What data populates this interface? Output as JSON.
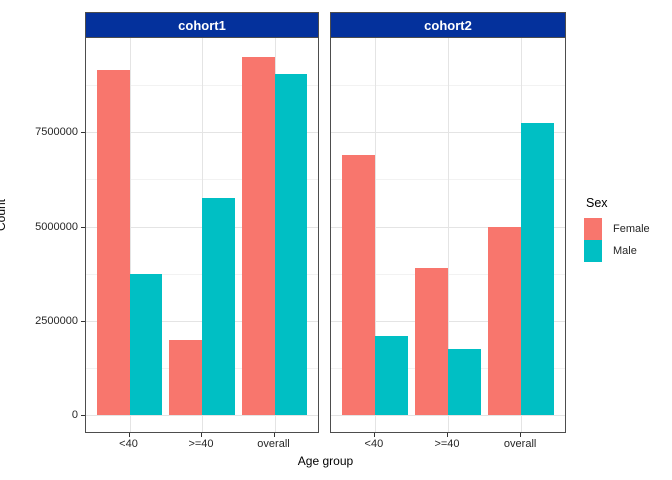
{
  "chart_data": {
    "type": "bar",
    "title": "",
    "categories": [
      "<40",
      ">=40",
      "overall"
    ],
    "facets": [
      {
        "label": "cohort1",
        "series": [
          {
            "name": "Female",
            "values": [
              9150000,
              2000000,
              9500000
            ]
          },
          {
            "name": "Male",
            "values": [
              3750000,
              5750000,
              9050000
            ]
          }
        ]
      },
      {
        "label": "cohort2",
        "series": [
          {
            "name": "Female",
            "values": [
              6900000,
              3900000,
              5000000
            ]
          },
          {
            "name": "Male",
            "values": [
              2100000,
              1750000,
              7750000
            ]
          }
        ]
      }
    ],
    "xlabel": "Age group",
    "ylabel": "Count",
    "ylim": [
      0,
      10000000
    ],
    "yticks": [
      0,
      2500000,
      5000000,
      7500000
    ],
    "ytick_labels": [
      "0",
      "2500000",
      "5000000",
      "7500000"
    ],
    "yticks_minor": [
      1250000,
      3750000,
      6250000,
      8750000
    ],
    "grid": true,
    "legend_position": "right",
    "legend": {
      "title": "Sex",
      "entries": [
        {
          "label": "Female",
          "color": "#F8766D"
        },
        {
          "label": "Male",
          "color": "#00BFC4"
        }
      ]
    },
    "colors": {
      "female": "#F8766D",
      "male": "#00BFC4",
      "strip_fill": "#04319C",
      "strip_text": "#FFFFFF",
      "panel_border": "#4D4D4D",
      "grid_major": "#E4E4E4",
      "grid_minor": "#F2F2F2"
    }
  }
}
